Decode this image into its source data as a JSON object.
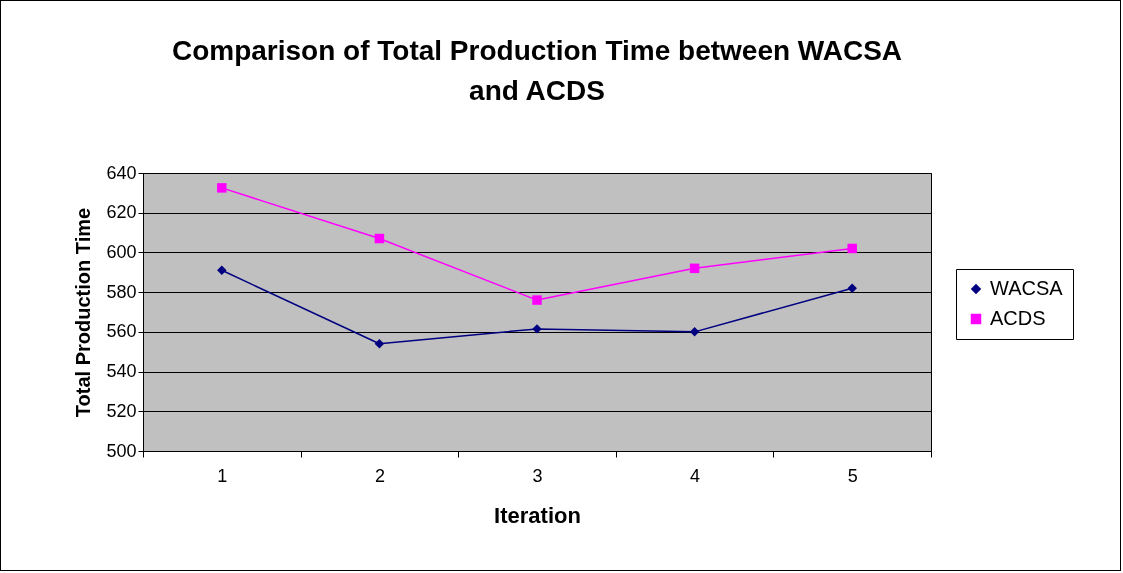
{
  "chart_data": {
    "type": "line",
    "title": "Comparison of Total Production Time between WACSA and ACDS",
    "xlabel": "Iteration",
    "ylabel": "Total Production Time",
    "categories": [
      "1",
      "2",
      "3",
      "4",
      "5"
    ],
    "series": [
      {
        "name": "WACSA",
        "color": "#000080",
        "marker": "diamond",
        "values": [
          591,
          554,
          561.5,
          560,
          582
        ]
      },
      {
        "name": "ACDS",
        "color": "#ff00ff",
        "marker": "square",
        "values": [
          632.5,
          607,
          576,
          592,
          602
        ]
      }
    ],
    "ylim": [
      500,
      640
    ],
    "yticks": [
      500,
      520,
      540,
      560,
      580,
      600,
      620,
      640
    ],
    "grid": "y",
    "legend": "right"
  }
}
